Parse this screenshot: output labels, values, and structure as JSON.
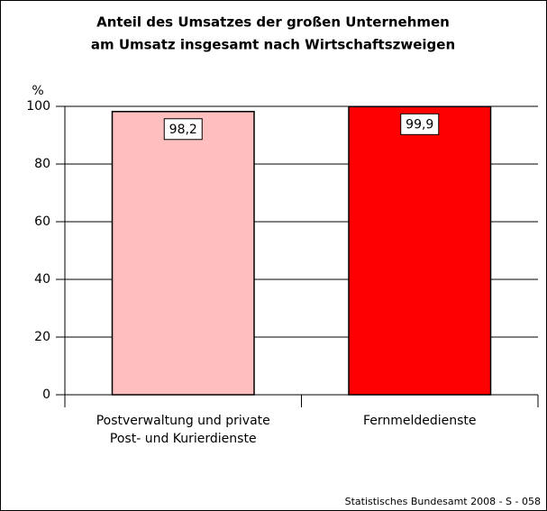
{
  "chart_data": {
    "type": "bar",
    "title": [
      "Anteil des Umsatzes der großen Unternehmen",
      "am Umsatz insgesamt nach Wirtschaftszweigen"
    ],
    "y_label": "%",
    "categories": [
      [
        "Postverwaltung und private",
        "Post- und Kurierdienste"
      ],
      [
        "Fernmeldedienste"
      ]
    ],
    "values": [
      98.2,
      99.9
    ],
    "value_labels": [
      "98,2",
      "99,9"
    ],
    "colors": [
      "#ffbfbf",
      "#ff0000"
    ],
    "ylim": [
      0,
      100
    ],
    "yticks": [
      0,
      20,
      40,
      60,
      80,
      100
    ],
    "grid": true,
    "source": "Statistisches Bundesamt 2008 - S - 058"
  }
}
